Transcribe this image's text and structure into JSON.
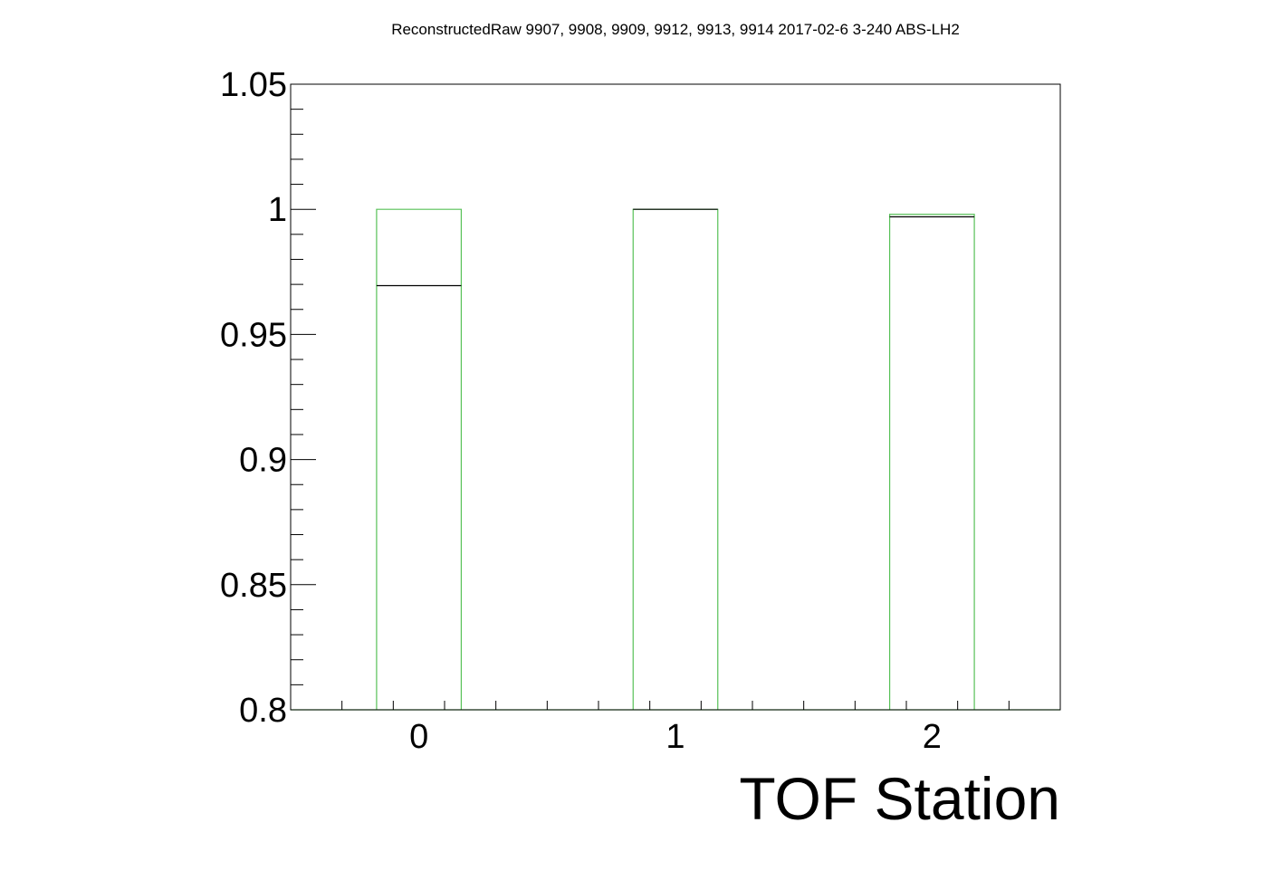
{
  "chart_data": {
    "type": "bar",
    "title": "ReconstructedRaw 9907, 9908, 9909, 9912, 9913, 9914 2017-02-6 3-240 ABS-LH2",
    "xlabel": "TOF Station",
    "ylabel": "",
    "categories": [
      "0",
      "1",
      "2"
    ],
    "x": [
      0,
      1,
      2
    ],
    "xlim": [
      -0.5,
      2.5
    ],
    "ylim": [
      0.8,
      1.05
    ],
    "yticks": [
      "0.8",
      "0.85",
      "0.9",
      "0.95",
      "1",
      "1.05"
    ],
    "ytick_values": [
      0.8,
      0.85,
      0.9,
      0.95,
      1.0,
      1.05
    ],
    "bar_width": 0.33,
    "grid": false,
    "series": [
      {
        "values": [
          1.0,
          1.0,
          0.998
        ],
        "color": "#57c157",
        "style": "outline"
      },
      {
        "values": [
          0.9695,
          1.0,
          0.997
        ],
        "color": "#000000",
        "style": "level-line"
      }
    ]
  }
}
